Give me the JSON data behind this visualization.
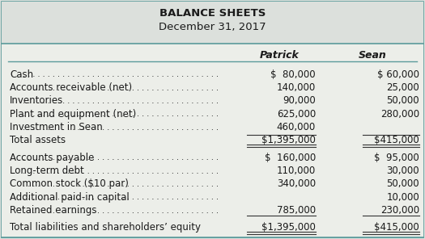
{
  "title1": "BALANCE SHEETS",
  "title2": "December 31, 2017",
  "col_headers": [
    "Patrick",
    "Sean"
  ],
  "rows": [
    {
      "label": "Cash",
      "dots": true,
      "patrick": "$  80,000",
      "sean": "$ 60,000",
      "bold": false,
      "single_ul": false,
      "double_ul": false,
      "top_line": false,
      "spacer": false
    },
    {
      "label": "Accounts receivable (net)",
      "dots": true,
      "patrick": "140,000",
      "sean": "25,000",
      "bold": false,
      "single_ul": false,
      "double_ul": false,
      "top_line": false,
      "spacer": false
    },
    {
      "label": "Inventories",
      "dots": true,
      "patrick": "90,000",
      "sean": "50,000",
      "bold": false,
      "single_ul": false,
      "double_ul": false,
      "top_line": false,
      "spacer": false
    },
    {
      "label": "Plant and equipment (net)",
      "dots": true,
      "patrick": "625,000",
      "sean": "280,000",
      "bold": false,
      "single_ul": false,
      "double_ul": false,
      "top_line": false,
      "spacer": false
    },
    {
      "label": "Investment in Sean",
      "dots": true,
      "patrick": "460,000",
      "sean": "",
      "bold": false,
      "single_ul": false,
      "double_ul": false,
      "top_line": false,
      "spacer": false
    },
    {
      "label": "Total assets",
      "dots": false,
      "patrick": "$1,395,000",
      "sean": "$415,000",
      "bold": false,
      "single_ul": false,
      "double_ul": true,
      "top_line": true,
      "spacer": false
    },
    {
      "label": "",
      "dots": false,
      "patrick": "",
      "sean": "",
      "bold": false,
      "single_ul": false,
      "double_ul": false,
      "top_line": false,
      "spacer": true
    },
    {
      "label": "Accounts payable",
      "dots": true,
      "patrick": "$  160,000",
      "sean": "$  95,000",
      "bold": false,
      "single_ul": false,
      "double_ul": false,
      "top_line": false,
      "spacer": false
    },
    {
      "label": "Long-term debt",
      "dots": true,
      "patrick": "110,000",
      "sean": "30,000",
      "bold": false,
      "single_ul": false,
      "double_ul": false,
      "top_line": false,
      "spacer": false
    },
    {
      "label": "Common stock ($10 par)",
      "dots": true,
      "patrick": "340,000",
      "sean": "50,000",
      "bold": false,
      "single_ul": false,
      "double_ul": false,
      "top_line": false,
      "spacer": false
    },
    {
      "label": "Additional paid-in capital",
      "dots": true,
      "patrick": "",
      "sean": "10,000",
      "bold": false,
      "single_ul": false,
      "double_ul": false,
      "top_line": false,
      "spacer": false
    },
    {
      "label": "Retained earnings",
      "dots": true,
      "patrick": "785,000",
      "sean": "230,000",
      "bold": false,
      "single_ul": true,
      "double_ul": false,
      "top_line": false,
      "spacer": false
    },
    {
      "label": "",
      "dots": false,
      "patrick": "",
      "sean": "",
      "bold": false,
      "single_ul": false,
      "double_ul": false,
      "top_line": false,
      "spacer": true
    },
    {
      "label": "Total liabilities and shareholders’ equity",
      "dots": false,
      "patrick": "$1,395,000",
      "sean": "$415,000",
      "bold": false,
      "single_ul": false,
      "double_ul": true,
      "top_line": false,
      "spacer": false
    }
  ],
  "bg_color": "#dce0dc",
  "table_bg": "#eceee9",
  "border_color": "#5b9b9b",
  "text_color": "#1a1a1a",
  "title_color": "#1a1a1a",
  "line_color": "#5b9b9b",
  "data_line_color": "#333333",
  "font_size": 8.5,
  "title_font_size": 9.5
}
